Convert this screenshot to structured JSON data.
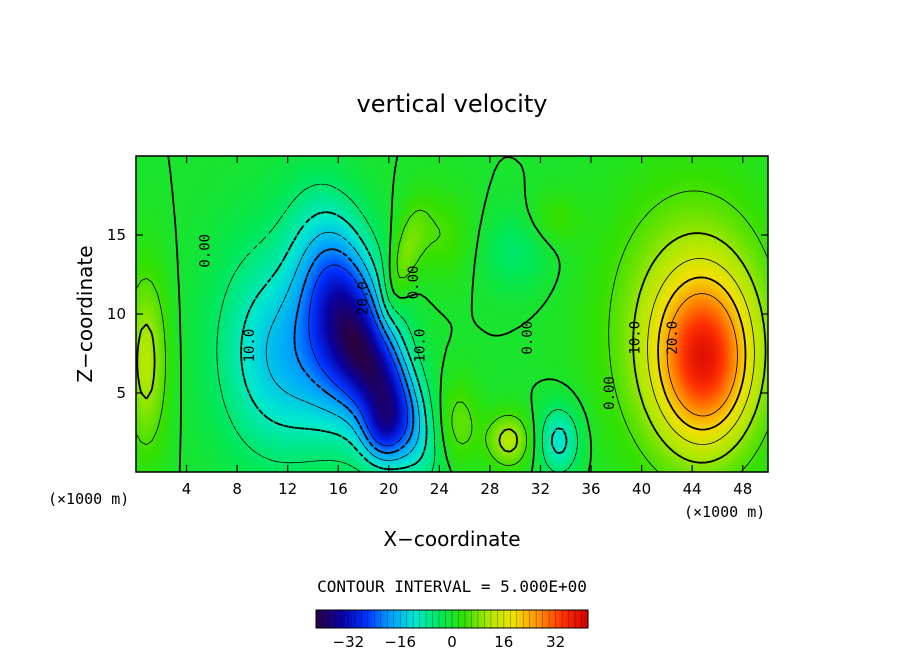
{
  "chart_data": {
    "type": "heatmap",
    "title": "vertical velocity",
    "xlabel": "X−coordinate",
    "ylabel": "Z−coordinate",
    "x_unit": "(×1000 m)",
    "x_unit_right": "(×1000 m)",
    "xlim": [
      0,
      50
    ],
    "ylim": [
      0,
      20
    ],
    "x_ticks": [
      4,
      8,
      12,
      16,
      20,
      24,
      28,
      32,
      36,
      40,
      44,
      48
    ],
    "y_ticks": [
      5,
      10,
      15
    ],
    "contour_interval_text": "CONTOUR INTERVAL = 5.000E+00",
    "contour_labels": [
      {
        "text": "0.00",
        "x": 5.5,
        "z": 14
      },
      {
        "text": "10.0",
        "x": 9.0,
        "z": 8
      },
      {
        "text": "20.0",
        "x": 18.0,
        "z": 11
      },
      {
        "text": "0.00",
        "x": 22.0,
        "z": 12
      },
      {
        "text": "10.0",
        "x": 22.5,
        "z": 8
      },
      {
        "text": "0.00",
        "x": 31.0,
        "z": 8.5
      },
      {
        "text": "0.00",
        "x": 37.5,
        "z": 5
      },
      {
        "text": "10.0",
        "x": 39.5,
        "z": 8.5
      },
      {
        "text": "20.0",
        "x": 42.5,
        "z": 8.5
      }
    ],
    "features": [
      {
        "x": 16.5,
        "z": 10,
        "value": -26,
        "sx": 2.2,
        "sz": 4.5,
        "rot": -15
      },
      {
        "x": 14,
        "z": 7,
        "value": -12,
        "sx": 3.5,
        "sz": 4,
        "rot": 0
      },
      {
        "x": 20,
        "z": 5,
        "value": -24,
        "sx": 1.6,
        "sz": 3.5,
        "rot": -30
      },
      {
        "x": 19.5,
        "z": 2.5,
        "value": -14,
        "sx": 1.2,
        "sz": 1.5,
        "rot": 0
      },
      {
        "x": 10,
        "z": 8,
        "value": -8,
        "sx": 3,
        "sz": 5,
        "rot": 0
      },
      {
        "x": 45,
        "z": 7,
        "value": 26,
        "sx": 2.5,
        "sz": 3.5,
        "rot": 0
      },
      {
        "x": 44,
        "z": 9,
        "value": 14,
        "sx": 4.5,
        "sz": 6,
        "rot": 0
      },
      {
        "x": 0.8,
        "z": 7,
        "value": 12,
        "sx": 1.2,
        "sz": 4,
        "rot": 0
      },
      {
        "x": 21,
        "z": 13,
        "value": 8,
        "sx": 0.8,
        "sz": 2.5,
        "rot": 20
      },
      {
        "x": 29.5,
        "z": 2,
        "value": 12,
        "sx": 1.2,
        "sz": 1.2,
        "rot": 0
      },
      {
        "x": 25.5,
        "z": 3,
        "value": 7,
        "sx": 1.2,
        "sz": 2,
        "rot": 0
      },
      {
        "x": 33.5,
        "z": 2,
        "value": -12,
        "sx": 1.2,
        "sz": 1.6,
        "rot": 0
      },
      {
        "x": 30,
        "z": 14,
        "value": -5,
        "sx": 2,
        "sz": 1.8,
        "rot": 0
      },
      {
        "x": 24,
        "z": 15,
        "value": 5,
        "sx": 2,
        "sz": 2,
        "rot": 0
      },
      {
        "x": 33,
        "z": 16,
        "value": 4,
        "sx": 1.5,
        "sz": 1.2,
        "rot": 0
      }
    ],
    "colorbar": {
      "min": -42,
      "max": 42,
      "tick_labels": [
        "−32",
        "−16",
        "0",
        "16",
        "32"
      ],
      "tick_values": [
        -32,
        -16,
        0,
        16,
        32
      ],
      "palette": [
        "#2a0040",
        "#0a00a0",
        "#0030ff",
        "#00a0ff",
        "#00e8d0",
        "#00e85a",
        "#34e000",
        "#b0e800",
        "#f2e000",
        "#ff9000",
        "#ff3000",
        "#d00000"
      ]
    }
  }
}
